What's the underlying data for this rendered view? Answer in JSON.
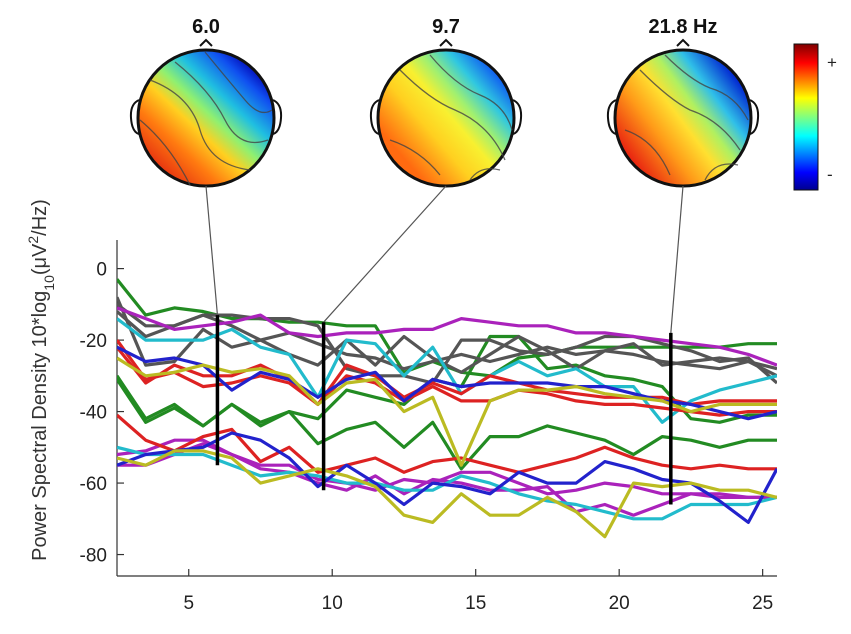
{
  "chart_data": {
    "type": "line",
    "title": "",
    "xlabel": "",
    "ylabel": "Power Spectral Density 10*log",
    "ylabel_sub": "10",
    "ylabel_unit_pre": "(μV",
    "ylabel_unit_sup": "2",
    "ylabel_unit_post": "/Hz)",
    "xlim": [
      2.5,
      25.5
    ],
    "ylim": [
      -86,
      8
    ],
    "x_ticks": [
      5,
      10,
      15,
      20,
      25
    ],
    "x_tick_labels": [
      "5",
      "10",
      "15",
      "20",
      "25"
    ],
    "y_ticks": [
      0,
      -20,
      -40,
      -60,
      -80
    ],
    "y_tick_labels": [
      "0",
      "-20",
      "-40",
      "-60",
      "-80"
    ],
    "grid": false,
    "x": [
      2.5,
      3.5,
      4.5,
      5.5,
      6.5,
      7.5,
      8.5,
      9.5,
      10.5,
      11.5,
      12.5,
      13.5,
      14.5,
      15.5,
      16.5,
      17.5,
      18.5,
      19.5,
      20.5,
      21.5,
      22.5,
      23.5,
      24.5,
      25.5
    ],
    "series": [
      {
        "color": "#228B22",
        "values": [
          -3,
          -13,
          -11,
          -12,
          -14,
          -14,
          -15,
          -15,
          -16,
          -16,
          -29,
          -26,
          -29,
          -30,
          -25,
          -24,
          -22,
          -22,
          -22,
          -22,
          -22,
          -22,
          -21,
          -21
        ]
      },
      {
        "color": "#228B22",
        "values": [
          -30,
          -42,
          -38,
          -44,
          -38,
          -44,
          -40,
          -42,
          -34,
          -36,
          -38,
          -31,
          -33,
          -19,
          -19,
          -28,
          -27,
          -30,
          -31,
          -33,
          -42,
          -43,
          -41,
          -41
        ]
      },
      {
        "color": "#228B22",
        "values": [
          -31,
          -43,
          -39,
          -44,
          -38,
          -43,
          -40,
          -49,
          -45,
          -43,
          -50,
          -43,
          -56,
          -47,
          -47,
          -44,
          -46,
          -48,
          -52,
          -47,
          -48,
          -50,
          -48,
          -48
        ]
      },
      {
        "color": "#555555",
        "values": [
          -8,
          -27,
          -26,
          -17,
          -22,
          -20,
          -24,
          -27,
          -20,
          -27,
          -19,
          -25,
          -29,
          -24,
          -19,
          -23,
          -28,
          -23,
          -21,
          -27,
          -26,
          -25,
          -26,
          -28
        ]
      },
      {
        "color": "#555555",
        "values": [
          -12,
          -19,
          -16,
          -13,
          -13,
          -14,
          -14,
          -16,
          -28,
          -30,
          -30,
          -32,
          -20,
          -20,
          -23,
          -24,
          -22,
          -19,
          -19,
          -21,
          -23,
          -26,
          -25,
          -32
        ]
      },
      {
        "color": "#555555",
        "values": [
          -10,
          -16,
          -16,
          -13,
          -16,
          -20,
          -18,
          -21,
          -24,
          -25,
          -28,
          -26,
          -24,
          -26,
          -24,
          -22,
          -24,
          -23,
          -24,
          -26,
          -27,
          -28,
          -26,
          -30
        ]
      },
      {
        "color": "#AA22BB",
        "values": [
          -11,
          -14,
          -17,
          -16,
          -15,
          -13,
          -18,
          -19,
          -18,
          -18,
          -17,
          -17,
          -14,
          -15,
          -16,
          -16,
          -18,
          -18,
          -19,
          -20,
          -21,
          -22,
          -24,
          -27
        ]
      },
      {
        "color": "#AA22BB",
        "values": [
          -52,
          -51,
          -48,
          -48,
          -52,
          -55,
          -55,
          -59,
          -60,
          -62,
          -59,
          -60,
          -57,
          -57,
          -60,
          -63,
          -62,
          -60,
          -61,
          -63,
          -63,
          -64,
          -64,
          -64
        ]
      },
      {
        "color": "#AA22BB",
        "values": [
          -55,
          -55,
          -52,
          -49,
          -52,
          -56,
          -57,
          -60,
          -62,
          -58,
          -63,
          -59,
          -60,
          -62,
          -62,
          -61,
          -68,
          -66,
          -69,
          -66,
          -63,
          -63,
          -64,
          -64
        ]
      },
      {
        "color": "#22BBCC",
        "values": [
          -14,
          -20,
          -20,
          -20,
          -17,
          -22,
          -24,
          -36,
          -20,
          -21,
          -30,
          -22,
          -35,
          -30,
          -26,
          -30,
          -28,
          -33,
          -33,
          -43,
          -37,
          -34,
          -32,
          -30
        ]
      },
      {
        "color": "#22BBCC",
        "values": [
          -50,
          -52,
          -52,
          -52,
          -55,
          -58,
          -57,
          -58,
          -60,
          -60,
          -62,
          -62,
          -58,
          -60,
          -63,
          -65,
          -66,
          -68,
          -70,
          -70,
          -66,
          -66,
          -66,
          -64
        ]
      },
      {
        "color": "#DD2222",
        "values": [
          -20,
          -31,
          -29,
          -33,
          -32,
          -30,
          -32,
          -38,
          -30,
          -32,
          -37,
          -33,
          -37,
          -37,
          -34,
          -35,
          -37,
          -38,
          -38,
          -39,
          -40,
          -41,
          -40,
          -40
        ]
      },
      {
        "color": "#DD2222",
        "values": [
          -41,
          -48,
          -51,
          -47,
          -45,
          -54,
          -50,
          -57,
          -55,
          -53,
          -57,
          -54,
          -53,
          -55,
          -57,
          -55,
          -53,
          -50,
          -53,
          -55,
          -56,
          -55,
          -56,
          -56
        ]
      },
      {
        "color": "#DD2222",
        "values": [
          -22,
          -32,
          -27,
          -30,
          -30,
          -27,
          -31,
          -38,
          -27,
          -30,
          -36,
          -32,
          -35,
          -30,
          -32,
          -34,
          -35,
          -36,
          -36,
          -36,
          -38,
          -37,
          -37,
          -37
        ]
      },
      {
        "color": "#2222CC",
        "values": [
          -55,
          -52,
          -51,
          -50,
          -46,
          -48,
          -53,
          -61,
          -55,
          -60,
          -66,
          -60,
          -61,
          -63,
          -57,
          -60,
          -60,
          -54,
          -56,
          -59,
          -60,
          -65,
          -71,
          -56
        ]
      },
      {
        "color": "#2222CC",
        "values": [
          -22,
          -26,
          -25,
          -27,
          -34,
          -29,
          -31,
          -36,
          -31,
          -29,
          -37,
          -31,
          -33,
          -32,
          -32,
          -32,
          -33,
          -33,
          -35,
          -37,
          -38,
          -40,
          -42,
          -40
        ]
      },
      {
        "color": "#BBBB22",
        "values": [
          -53,
          -55,
          -51,
          -51,
          -53,
          -60,
          -58,
          -56,
          -58,
          -61,
          -69,
          -71,
          -63,
          -69,
          -69,
          -64,
          -68,
          -75,
          -60,
          -61,
          -60,
          -62,
          -62,
          -64
        ]
      },
      {
        "color": "#BBBB22",
        "values": [
          -25,
          -30,
          -29,
          -27,
          -29,
          -28,
          -30,
          -38,
          -32,
          -31,
          -40,
          -36,
          -55,
          -37,
          -34,
          -34,
          -33,
          -35,
          -36,
          -37,
          -40,
          -38,
          -38,
          -38
        ]
      }
    ],
    "markers": [
      {
        "x": 6.0,
        "y_top": -13,
        "y_bottom": -55
      },
      {
        "x": 9.7,
        "y_top": -15,
        "y_bottom": -62
      },
      {
        "x": 21.8,
        "y_top": -18,
        "y_bottom": -66
      }
    ],
    "topo_labels": [
      "6.0",
      "9.7",
      "21.8 Hz"
    ],
    "colorbar": {
      "max_label": "+",
      "min_label": "-"
    },
    "line_color": "#555555"
  }
}
